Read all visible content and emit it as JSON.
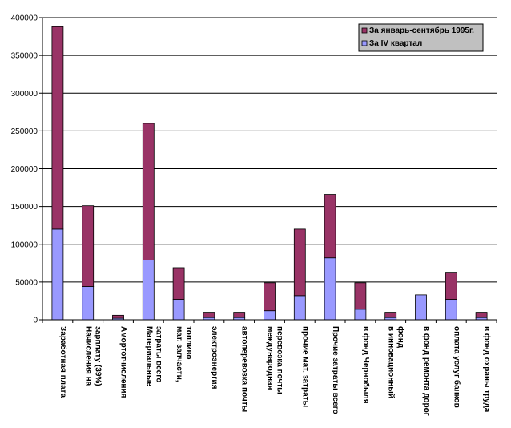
{
  "chart_data": {
    "type": "bar",
    "stacked": true,
    "ylim": [
      0,
      400000
    ],
    "yticks": [
      "0",
      "50000",
      "100000",
      "150000",
      "200000",
      "250000",
      "300000",
      "350000",
      "400000"
    ],
    "ytick_values": [
      0,
      50000,
      100000,
      150000,
      200000,
      250000,
      300000,
      350000,
      400000
    ],
    "categories": [
      [
        "Заработная плата"
      ],
      [
        "Начисления на",
        "зарплату (39%)"
      ],
      [
        "Амортотчисления"
      ],
      [
        "Материальные",
        "затраты всего"
      ],
      [
        "мат. запчасти,",
        "топливо"
      ],
      [
        "электроэнергия"
      ],
      [
        "автоперевозка почты"
      ],
      [
        "международная",
        "перевозка почты"
      ],
      [
        "прочие мат. затраты"
      ],
      [
        "Прочие затраты всего"
      ],
      [
        "в фонд Чернобыля"
      ],
      [
        "в инновационный",
        "фонд"
      ],
      [
        "в фонд ремонта дорог"
      ],
      [
        "оплата услуг банков"
      ],
      [
        "в фонд охраны труда"
      ]
    ],
    "series": [
      {
        "name": "За IV квартал",
        "color": "#9999ff",
        "values": [
          120000,
          44000,
          2000,
          79000,
          27000,
          3000,
          3000,
          12000,
          32000,
          82000,
          14000,
          3000,
          33000,
          27000,
          3000
        ]
      },
      {
        "name": "За январь-сентябрь 1995г.",
        "color": "#993366",
        "values": [
          268000,
          107000,
          4000,
          181000,
          42000,
          7000,
          7000,
          37000,
          88000,
          84000,
          35000,
          7000,
          0,
          36000,
          7000
        ]
      }
    ],
    "legend": {
      "placement": "top-right",
      "entries": [
        "За январь-сентябрь 1995г.",
        "За IV квартал"
      ]
    }
  }
}
